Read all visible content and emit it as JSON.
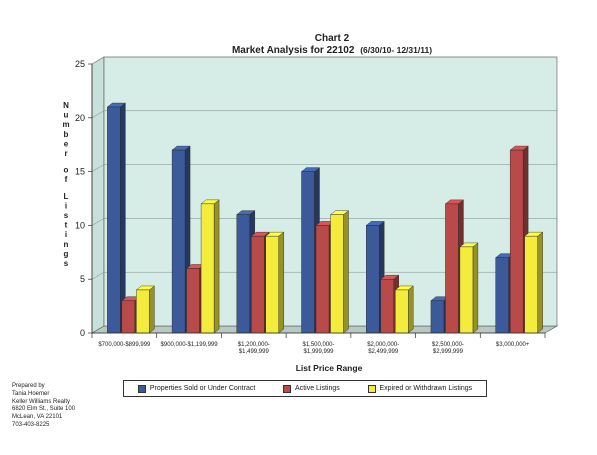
{
  "chart_data": {
    "type": "bar",
    "title": "Chart 2",
    "subtitle": "Market Analysis for 22102",
    "subtitle_dates": "(6/30/10- 12/31/11)",
    "xlabel": "List Price Range",
    "ylabel": "Number of Listings",
    "ylim": [
      0,
      25
    ],
    "yticks": [
      "0",
      "5",
      "10",
      "15",
      "20",
      "25"
    ],
    "grid": true,
    "three_d": true,
    "legend_position": "bottom",
    "categories": [
      [
        "$700,000-$899,999"
      ],
      [
        "$900,000-$1,199,999"
      ],
      [
        "$1,200,000-",
        "$1,499,999"
      ],
      [
        "$1,500,000-",
        "$1,999,999"
      ],
      [
        "$2,000,000-",
        "$2,499,999"
      ],
      [
        "$2,500,000-",
        "$2,999,999"
      ],
      [
        "$3,000,000+"
      ]
    ],
    "series": [
      {
        "name": "Properties Sold or Under Contract",
        "color": "#3c5a9a",
        "values": [
          21,
          17,
          11,
          15,
          10,
          3,
          7
        ]
      },
      {
        "name": "Active Listings",
        "color": "#b94a4a",
        "values": [
          3,
          6,
          9,
          10,
          5,
          12,
          17
        ]
      },
      {
        "name": "Expired or Withdrawn Listings",
        "color": "#f3ec3c",
        "values": [
          4,
          12,
          9,
          11,
          4,
          8,
          9
        ]
      }
    ],
    "colors": {
      "background": "#d6ece6",
      "floor": "#b8c8c2",
      "wall_side": "#c8e0da"
    }
  },
  "prepared_by": {
    "lines": [
      "Prepared by",
      "Tania Hoemer",
      "Keller Williams Realty",
      "6820 Elm St., Suite 100",
      "McLean, VA 22101",
      "703-403-8225"
    ]
  }
}
